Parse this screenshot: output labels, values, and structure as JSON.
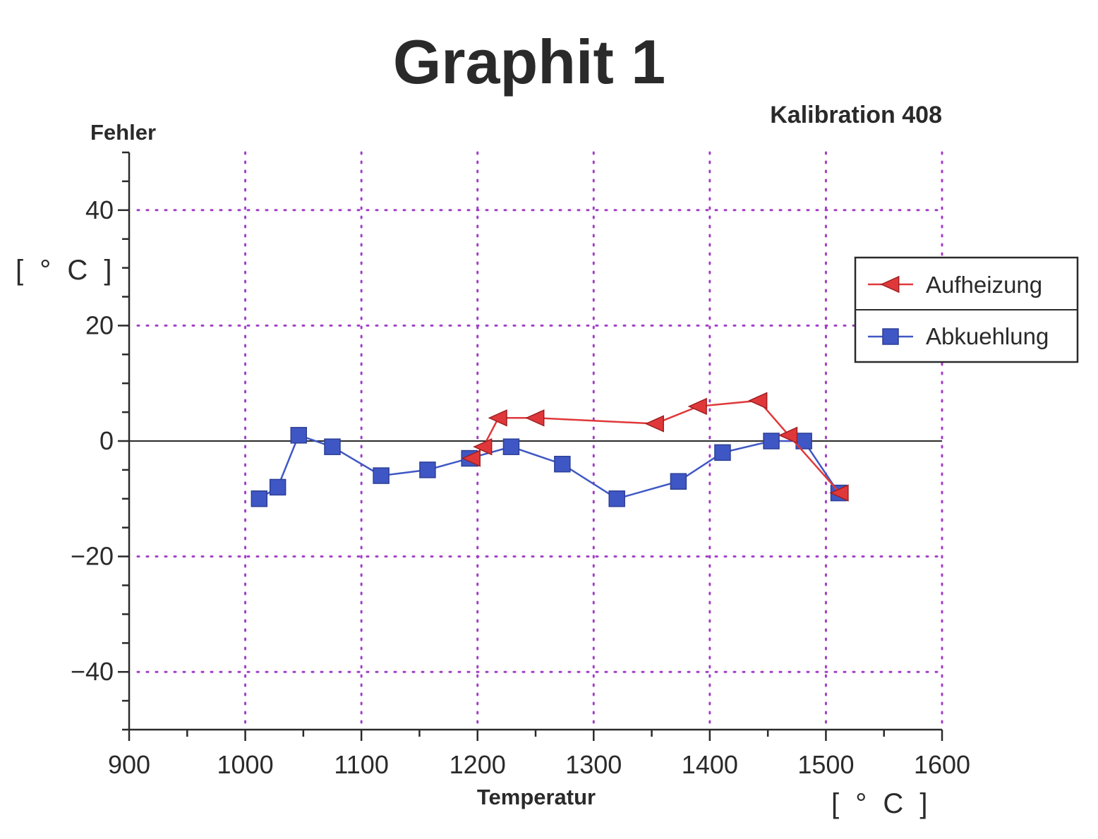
{
  "chart_data": {
    "type": "line",
    "title": "Graphit 1",
    "subtitle": "Kalibration 408",
    "xlabel": "Temperatur",
    "xunit": "[ ° C ]",
    "ylabel": "Fehler",
    "yunit": "[ ° C ]",
    "xlim": [
      900,
      1600
    ],
    "ylim": [
      -50,
      50
    ],
    "xticks": [
      "900",
      "1000",
      "1100",
      "1200",
      "1300",
      "1400",
      "1500",
      "1600"
    ],
    "yticks": [
      "40",
      "20",
      "0",
      "−20",
      "−40"
    ],
    "grid": true,
    "legend_position": "right",
    "series": [
      {
        "name": "Aufheizung",
        "marker": "triangle-left",
        "color": "#e0383a",
        "x": [
          1195,
          1205,
          1218,
          1250,
          1353,
          1390,
          1442,
          1468,
          1512
        ],
        "y": [
          -3,
          -1,
          4,
          4,
          3,
          6,
          7,
          1,
          -9
        ]
      },
      {
        "name": "Abkuehlung",
        "marker": "square",
        "color": "#3f57c4",
        "x": [
          1012,
          1028,
          1046,
          1075,
          1117,
          1157,
          1193,
          1229,
          1273,
          1320,
          1373,
          1411,
          1453,
          1481,
          1511
        ],
        "y": [
          -10,
          -8,
          1,
          -1,
          -6,
          -5,
          -3,
          -1,
          -4,
          -10,
          -7,
          -2,
          0,
          0,
          -9
        ]
      }
    ]
  }
}
